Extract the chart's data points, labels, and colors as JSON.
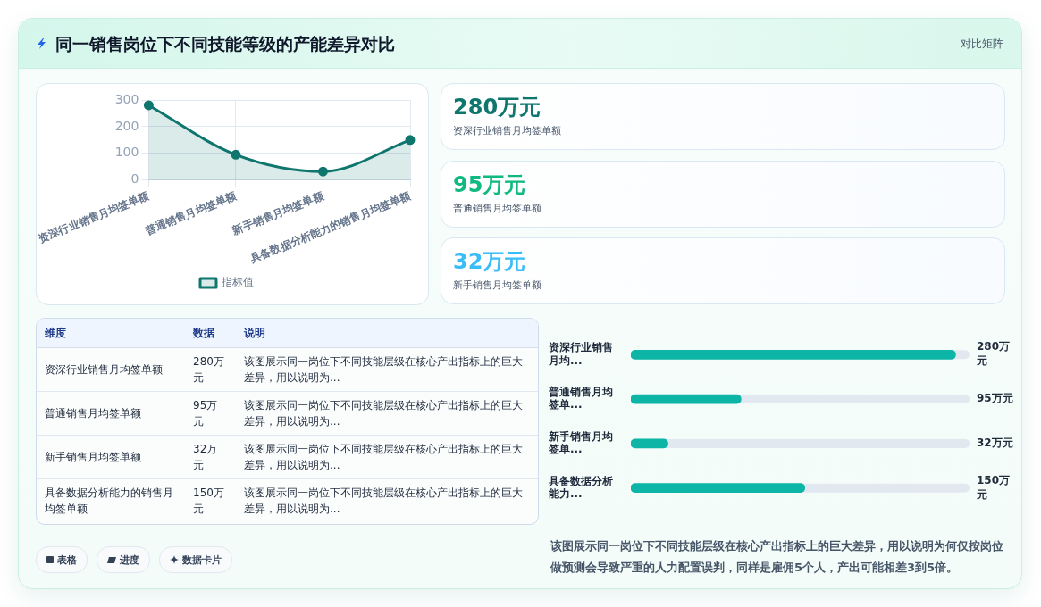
{
  "chart_data": [
    {
      "type": "other",
      "title": "同一销售岗位下不同技能等级的产能差异对比",
      "subtitle": "对比矩阵"
    },
    {
      "type": "area",
      "categories": [
        "资深行业销售月均签单额",
        "普通销售月均签单额",
        "新手销售月均签单额",
        "具备数据分析能力的销售月均签单额"
      ],
      "series": [
        {
          "name": "指标值",
          "color": "#0f766e",
          "values": [
            280,
            95,
            32,
            150
          ]
        }
      ],
      "ylim": [
        0,
        300
      ],
      "yticks": [
        0,
        100,
        200,
        300
      ],
      "grid": true,
      "legend": "bottom",
      "marker": "circle"
    },
    {
      "type": "other",
      "annotations": [
        "280万元",
        "资深行业销售月均签单额",
        "95万元",
        "普通销售月均签单额",
        "32万元",
        "新手销售月均签单额"
      ]
    },
    {
      "type": "other",
      "annotations": [
        "维度",
        "数据",
        "说明",
        "资深行业销售月均签单额",
        "280万元",
        "该图展示同一岗位下不同技能层级在核心产出指标上的巨大差异，用以说明为...",
        "普通销售月均签单额",
        "95万元",
        "该图展示同一岗位下不同技能层级在核心产出指标上的巨大差异，用以说明为...",
        "新手销售月均签单额",
        "32万元",
        "该图展示同一岗位下不同技能层级在核心产出指标上的巨大差异，用以说明为...",
        "具备数据分析能力的销售月均签单额",
        "150万元",
        "该图展示同一岗位下不同技能层级在核心产出指标上的巨大差异，用以说明为..."
      ]
    },
    {
      "type": "bar",
      "orientation": "horizontal",
      "categories": [
        "资深行业销售月均...",
        "普通销售月均签单...",
        "新手销售月均签单...",
        "具备数据分析能力..."
      ],
      "values": [
        280,
        95,
        32,
        150
      ],
      "value_labels": [
        "280万元",
        "95万元",
        "32万元",
        "150万元"
      ],
      "color": "#0db5a6",
      "xlim": [
        0,
        292
      ],
      "tick_labels": "y",
      "annotations": [
        "该图展示同一岗位下不同技能层级在核心产出指标上的巨大差异，用以说明为何仅按岗位做预测会导致严重的人力配置误判，同样是雇佣5个人，产出可能相差3到5倍。"
      ]
    },
    {
      "type": "other",
      "annotations": [
        "表格",
        "进度",
        "数据卡片"
      ]
    }
  ]
}
